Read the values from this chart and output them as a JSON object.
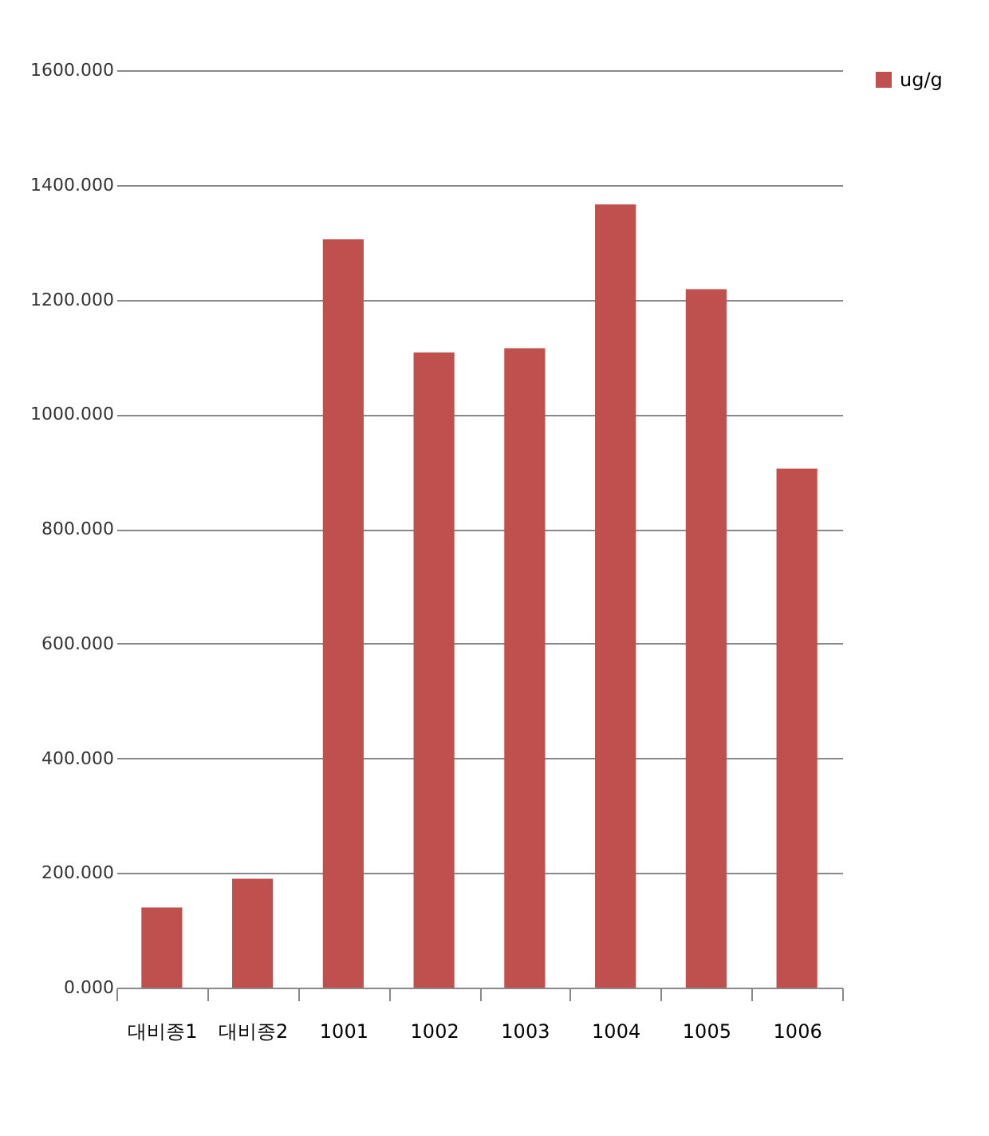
{
  "chart_data": {
    "type": "bar",
    "categories": [
      "대비종1",
      "대비종2",
      "1001",
      "1002",
      "1003",
      "1004",
      "1005",
      "1006"
    ],
    "series": [
      {
        "name": "ug/g",
        "color": "#c0504d",
        "values": [
          140,
          190,
          1305,
          1108,
          1115,
          1366,
          1218,
          905
        ]
      }
    ],
    "ylim": [
      0,
      1600
    ],
    "yticks": [
      {
        "value": 0,
        "label": "0.000"
      },
      {
        "value": 200,
        "label": "200.000"
      },
      {
        "value": 400,
        "label": "400.000"
      },
      {
        "value": 600,
        "label": "600.000"
      },
      {
        "value": 800,
        "label": "800.000"
      },
      {
        "value": 1000,
        "label": "1000.000"
      },
      {
        "value": 1200,
        "label": "1200.000"
      },
      {
        "value": 1400,
        "label": "1400.000"
      },
      {
        "value": 1600,
        "label": "1600.000"
      }
    ],
    "grid": "y",
    "legend": "right"
  }
}
